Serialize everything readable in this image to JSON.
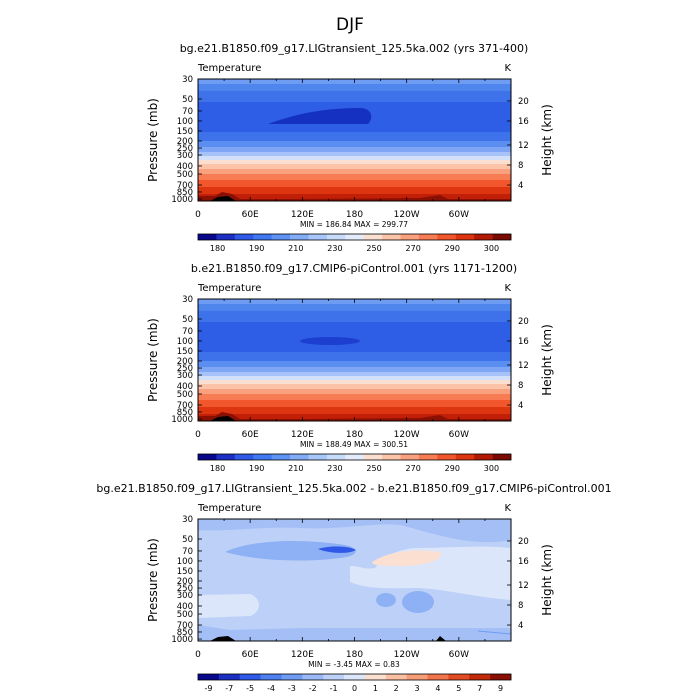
{
  "page_title": "DJF",
  "colors": {
    "temp_bar": [
      "#08088c",
      "#1c31c4",
      "#2f59e6",
      "#3f78f0",
      "#5e93f5",
      "#83acf7",
      "#a7c6f9",
      "#c7dbfb",
      "#e4ecfb",
      "#fbe0d2",
      "#fbc3a8",
      "#f9a17e",
      "#f77b53",
      "#f2562c",
      "#dc3510",
      "#b31a05",
      "#7a0a02"
    ],
    "diff_bar": [
      "#08088c",
      "#1c31c4",
      "#2f59e6",
      "#4e7fee",
      "#6f9cf2",
      "#9ab8f5",
      "#bcd0f8",
      "#dbe6fb",
      "#fbe0d2",
      "#f9c0a2",
      "#f79d77",
      "#f2744c",
      "#e24c22",
      "#c22a0a",
      "#8a0f02"
    ]
  },
  "chart_data": [
    {
      "type": "heatmap",
      "title": "bg.e21.B1850.f09_g17.LIGtransient_125.5ka.002 (yrs 371-400)",
      "left_label": "Temperature",
      "right_label": "K",
      "ylabel": "Pressure  (mb)",
      "ylabel_right": "Height  (km)",
      "x_ticks": [
        "0",
        "60E",
        "120E",
        "180",
        "120W",
        "60W"
      ],
      "y_ticks": [
        "30",
        "50",
        "70",
        "100",
        "150",
        "200",
        "250",
        "300",
        "400",
        "500",
        "700",
        "850",
        "1000"
      ],
      "height_ticks": [
        "20",
        "16",
        "12",
        "8",
        "4"
      ],
      "stats": "MIN = 186.84   MAX = 299.77",
      "colorbar_labels": [
        "180",
        "190",
        "210",
        "230",
        "250",
        "270",
        "290",
        "300"
      ]
    },
    {
      "type": "heatmap",
      "title": "b.e21.B1850.f09_g17.CMIP6-piControl.001 (yrs 1171-1200)",
      "left_label": "Temperature",
      "right_label": "K",
      "ylabel": "Pressure  (mb)",
      "ylabel_right": "Height  (km)",
      "x_ticks": [
        "0",
        "60E",
        "120E",
        "180",
        "120W",
        "60W"
      ],
      "y_ticks": [
        "30",
        "50",
        "70",
        "100",
        "150",
        "200",
        "250",
        "300",
        "400",
        "500",
        "700",
        "850",
        "1000"
      ],
      "height_ticks": [
        "20",
        "16",
        "12",
        "8",
        "4"
      ],
      "stats": "MIN = 188.49   MAX = 300.51",
      "colorbar_labels": [
        "180",
        "190",
        "210",
        "230",
        "250",
        "270",
        "290",
        "300"
      ]
    },
    {
      "type": "heatmap",
      "title": "bg.e21.B1850.f09_g17.LIGtransient_125.5ka.002 - b.e21.B1850.f09_g17.CMIP6-piControl.001",
      "left_label": "Temperature",
      "right_label": "K",
      "ylabel": "Pressure  (mb)",
      "ylabel_right": "Height  (km)",
      "x_ticks": [
        "0",
        "60E",
        "120E",
        "180",
        "120W",
        "60W"
      ],
      "y_ticks": [
        "30",
        "50",
        "70",
        "100",
        "150",
        "200",
        "250",
        "300",
        "400",
        "500",
        "700",
        "850",
        "1000"
      ],
      "height_ticks": [
        "20",
        "16",
        "12",
        "8",
        "4"
      ],
      "stats": "MIN =   -3.45   MAX =   0.83",
      "colorbar_labels": [
        "-9",
        "-7",
        "-5",
        "-4",
        "-3",
        "-2",
        "-1",
        "0",
        "1",
        "2",
        "3",
        "4",
        "5",
        "7",
        "9"
      ]
    }
  ]
}
